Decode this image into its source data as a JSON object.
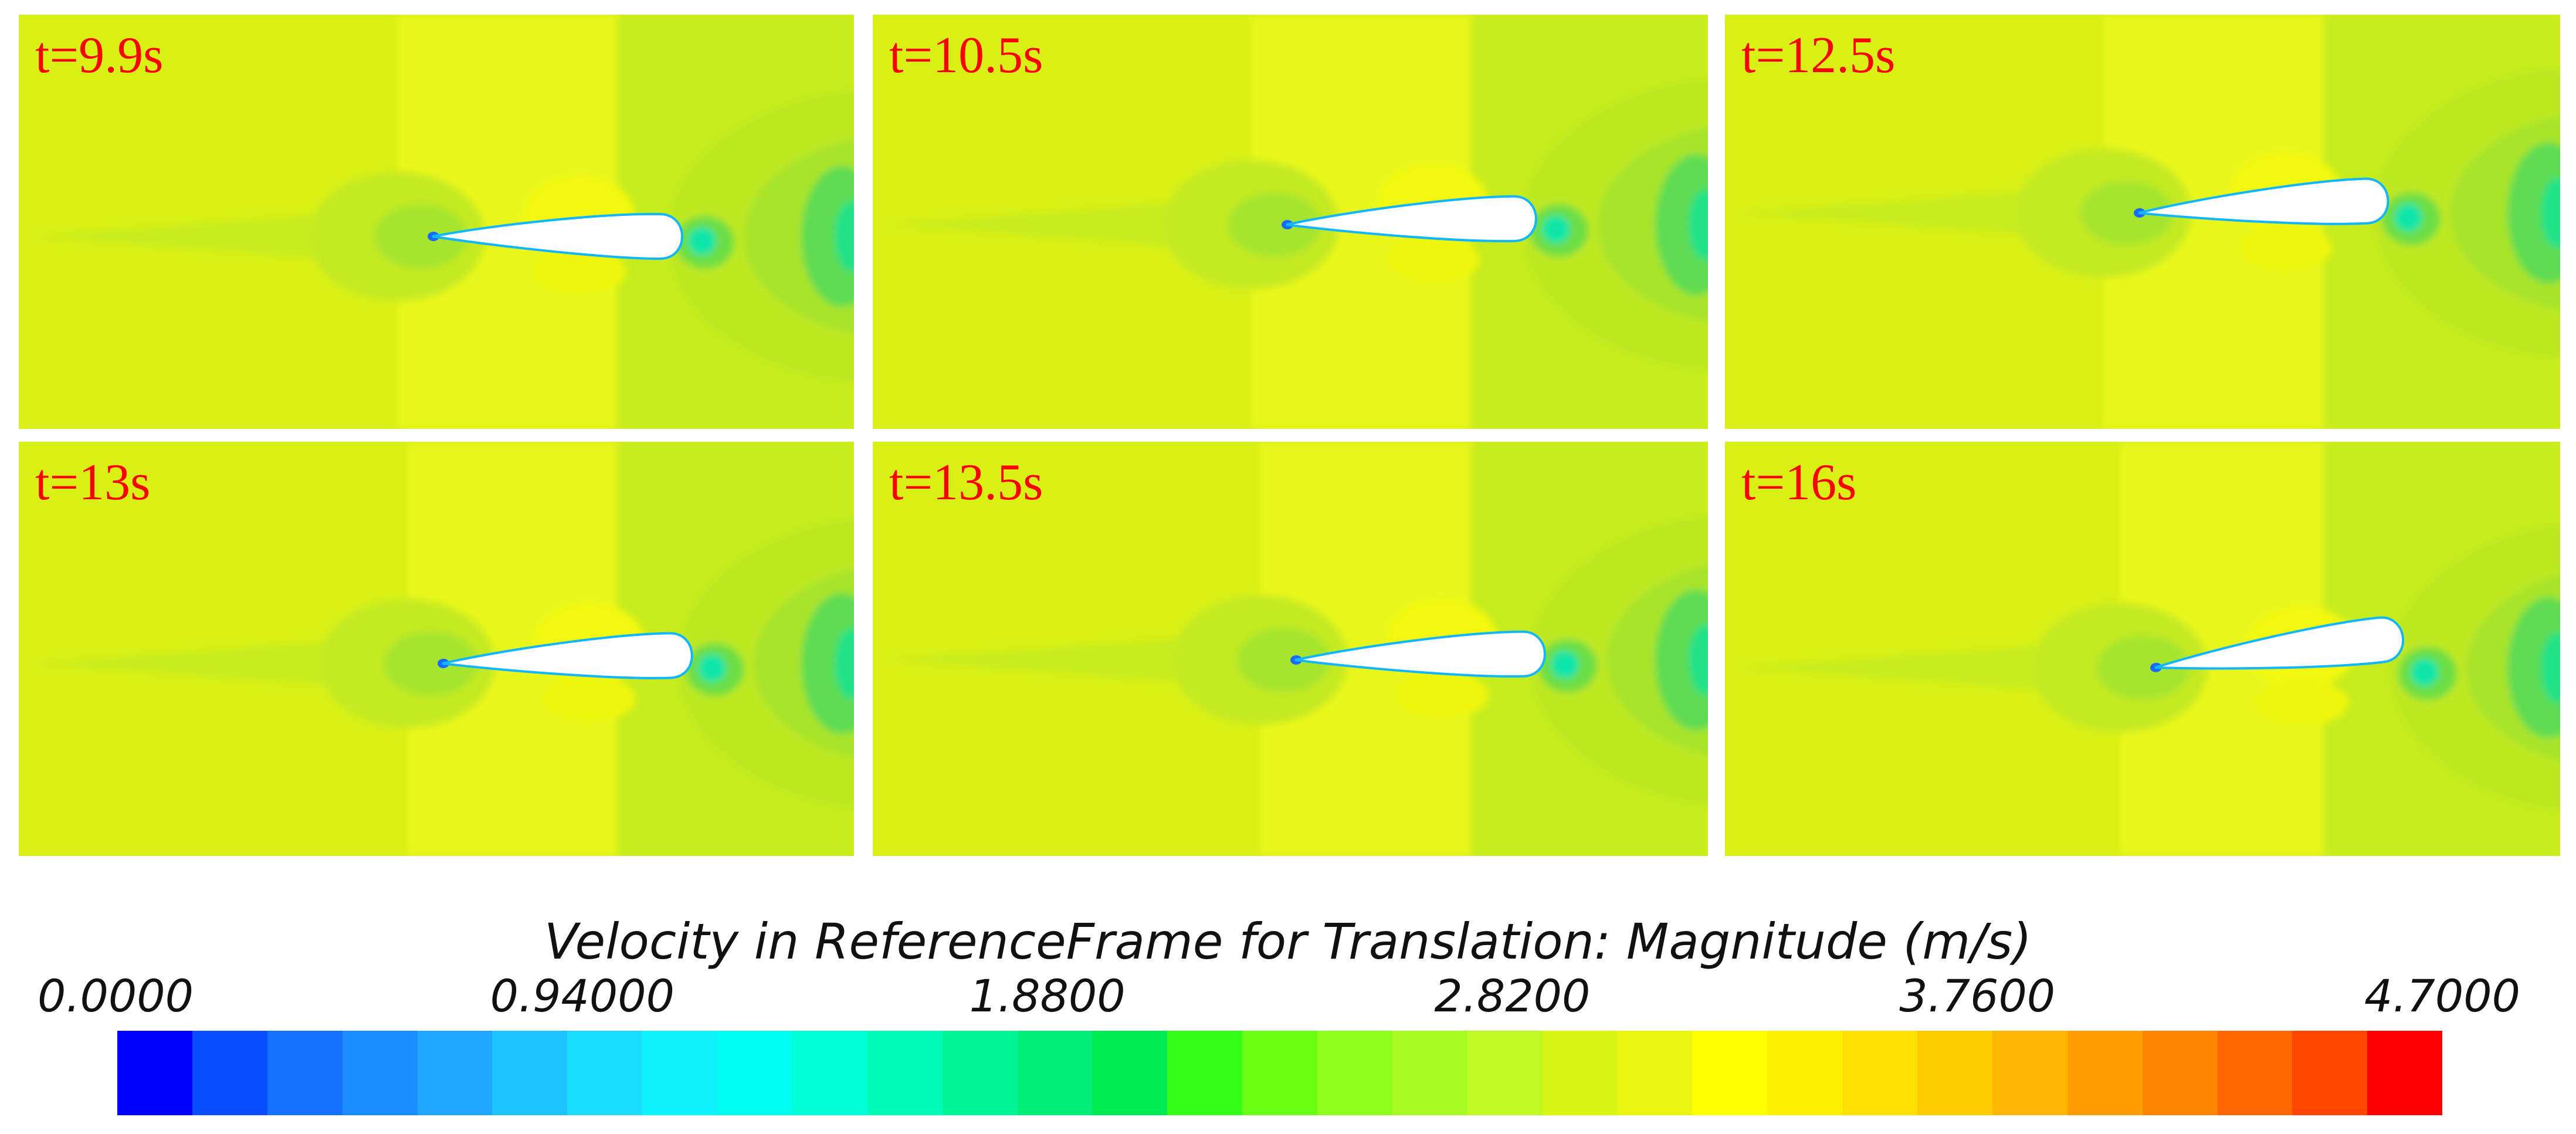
{
  "chart_data": {
    "type": "heatmap",
    "panels": [
      {
        "label": "t=9.9s"
      },
      {
        "label": "t=10.5s"
      },
      {
        "label": "t=12.5s"
      },
      {
        "label": "t=13s"
      },
      {
        "label": "t=13.5s"
      },
      {
        "label": "t=16s"
      }
    ],
    "colorbar": {
      "title": "Velocity in ReferenceFrame for Translation: Magnitude (m/s)",
      "ticks": [
        {
          "value": 0.0,
          "label": "0.0000"
        },
        {
          "value": 0.94,
          "label": "0.94000"
        },
        {
          "value": 1.88,
          "label": "1.8800"
        },
        {
          "value": 2.82,
          "label": "2.8200"
        },
        {
          "value": 3.76,
          "label": "3.7600"
        },
        {
          "value": 4.7,
          "label": "4.7000"
        }
      ],
      "range": [
        0.0,
        4.7
      ],
      "colors": [
        "#0000ff",
        "#0a4cff",
        "#1271ff",
        "#1a8eff",
        "#20a6ff",
        "#1cc3ff",
        "#1addff",
        "#10f3ff",
        "#00ffee",
        "#00ffd6",
        "#00fbb8",
        "#00f597",
        "#00ee78",
        "#00ea55",
        "#33ff18",
        "#6aff14",
        "#8efe1a",
        "#a8fb22",
        "#c0f822",
        "#d8f514",
        "#eaf612",
        "#ffff00",
        "#fff000",
        "#ffe000",
        "#ffcc00",
        "#ffb600",
        "#ff9d00",
        "#ff8400",
        "#ff6600",
        "#ff4600",
        "#ff0000"
      ]
    }
  }
}
